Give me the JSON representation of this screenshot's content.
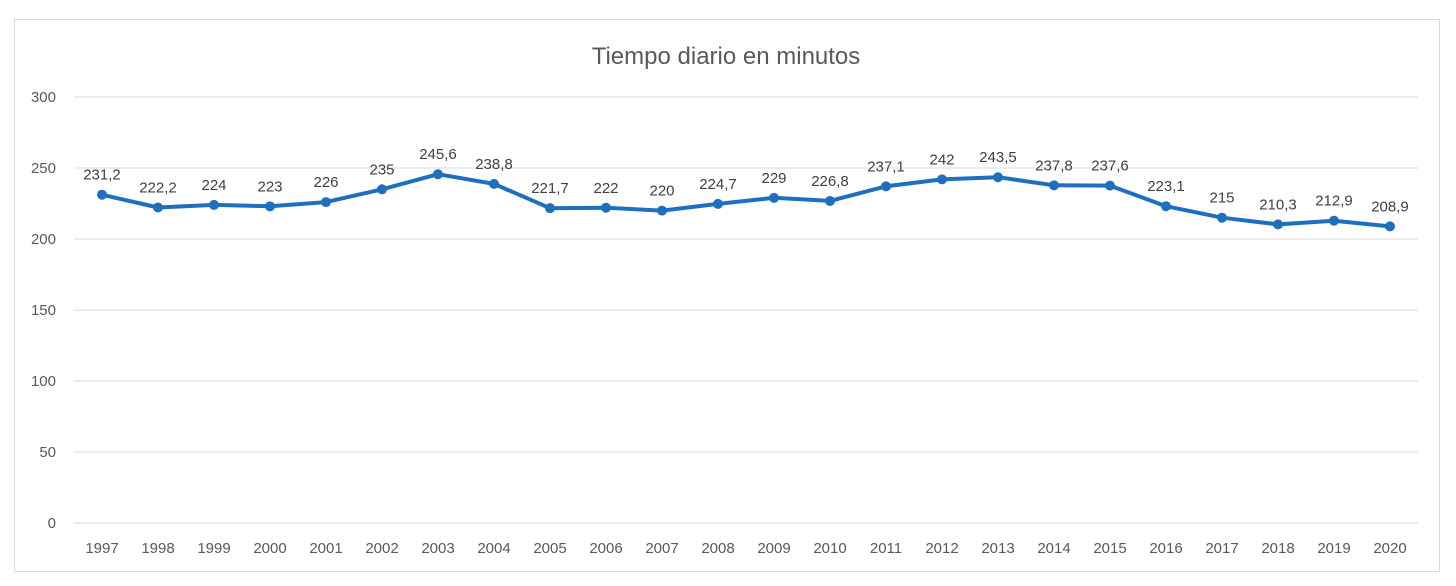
{
  "chart_data": {
    "type": "line",
    "title": "Tiempo diario en minutos",
    "xlabel": "",
    "ylabel": "",
    "categories": [
      "1997",
      "1998",
      "1999",
      "2000",
      "2001",
      "2002",
      "2003",
      "2004",
      "2005",
      "2006",
      "2007",
      "2008",
      "2009",
      "2010",
      "2011",
      "2012",
      "2013",
      "2014",
      "2015",
      "2016",
      "2017",
      "2018",
      "2019",
      "2020"
    ],
    "series": [
      {
        "values": [
          231.2,
          222.2,
          224,
          223,
          226,
          235,
          245.6,
          238.8,
          221.7,
          222,
          220,
          224.7,
          229,
          226.8,
          237.1,
          242,
          243.5,
          237.8,
          237.6,
          223.1,
          215,
          210.3,
          212.9,
          208.9
        ],
        "labels": [
          "231,2",
          "222,2",
          "224",
          "223",
          "226",
          "235",
          "245,6",
          "238,8",
          "221,7",
          "222",
          "220",
          "224,7",
          "229",
          "226,8",
          "237,1",
          "242",
          "243,5",
          "237,8",
          "237,6",
          "223,1",
          "215",
          "210,3",
          "212,9",
          "208,9"
        ],
        "color": "#1f6fbf"
      }
    ],
    "ylim": [
      0,
      300
    ],
    "yticks": [
      "0",
      "50",
      "100",
      "150",
      "200",
      "250",
      "300"
    ],
    "grid": true,
    "legend": "none"
  }
}
